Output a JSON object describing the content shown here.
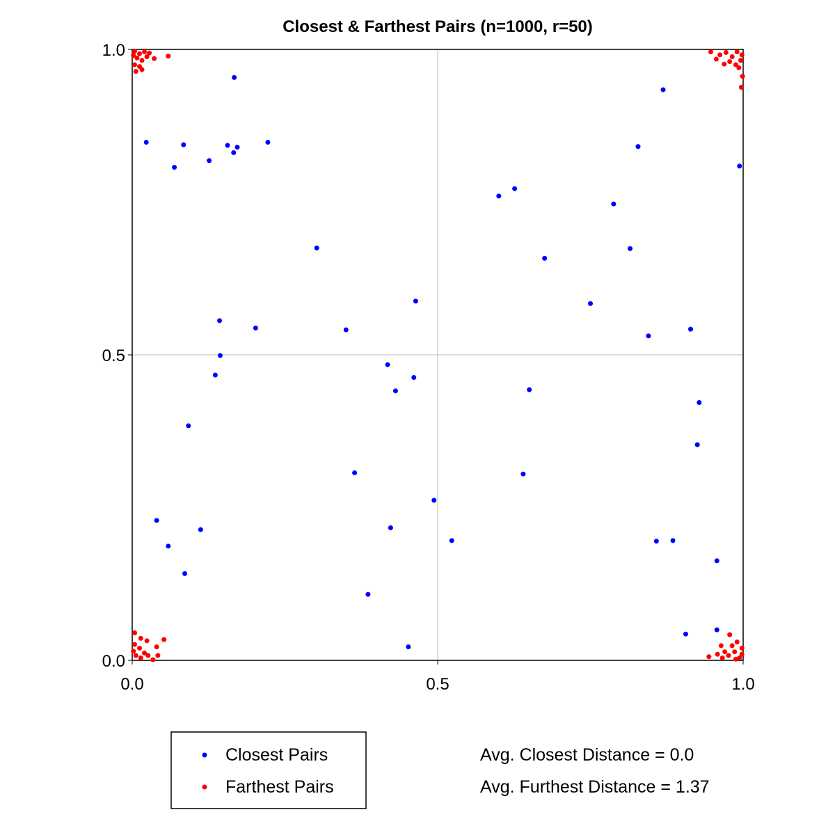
{
  "chart_data": {
    "type": "scatter",
    "title": "Closest & Farthest Pairs (n=1000, r=50)",
    "xlabel": "",
    "ylabel": "",
    "xlim": [
      0.0,
      1.0
    ],
    "ylim": [
      0.0,
      1.0
    ],
    "x_ticks": [
      "0.0",
      "0.5",
      "1.0"
    ],
    "y_ticks": [
      "0.0",
      "0.5",
      "1.0"
    ],
    "grid": true,
    "legend_position": "bottom-left",
    "series": [
      {
        "name": "Closest Pairs",
        "color": "#0000ff",
        "points": [
          [
            0.023,
            0.848
          ],
          [
            0.084,
            0.844
          ],
          [
            0.069,
            0.807
          ],
          [
            0.126,
            0.818
          ],
          [
            0.156,
            0.843
          ],
          [
            0.166,
            0.831
          ],
          [
            0.172,
            0.84
          ],
          [
            0.222,
            0.848
          ],
          [
            0.167,
            0.954
          ],
          [
            0.869,
            0.934
          ],
          [
            0.828,
            0.841
          ],
          [
            0.994,
            0.809
          ],
          [
            0.6,
            0.76
          ],
          [
            0.626,
            0.772
          ],
          [
            0.788,
            0.747
          ],
          [
            0.815,
            0.674
          ],
          [
            0.675,
            0.658
          ],
          [
            0.302,
            0.675
          ],
          [
            0.464,
            0.588
          ],
          [
            0.75,
            0.584
          ],
          [
            0.143,
            0.556
          ],
          [
            0.202,
            0.544
          ],
          [
            0.35,
            0.541
          ],
          [
            0.914,
            0.542
          ],
          [
            0.845,
            0.531
          ],
          [
            0.144,
            0.499
          ],
          [
            0.418,
            0.484
          ],
          [
            0.136,
            0.467
          ],
          [
            0.461,
            0.463
          ],
          [
            0.65,
            0.443
          ],
          [
            0.431,
            0.441
          ],
          [
            0.928,
            0.422
          ],
          [
            0.092,
            0.384
          ],
          [
            0.925,
            0.353
          ],
          [
            0.364,
            0.307
          ],
          [
            0.64,
            0.305
          ],
          [
            0.494,
            0.262
          ],
          [
            0.04,
            0.229
          ],
          [
            0.112,
            0.214
          ],
          [
            0.423,
            0.217
          ],
          [
            0.059,
            0.187
          ],
          [
            0.523,
            0.196
          ],
          [
            0.858,
            0.195
          ],
          [
            0.885,
            0.196
          ],
          [
            0.957,
            0.163
          ],
          [
            0.086,
            0.142
          ],
          [
            0.386,
            0.108
          ],
          [
            0.906,
            0.043
          ],
          [
            0.957,
            0.05
          ],
          [
            0.452,
            0.022
          ]
        ]
      },
      {
        "name": "Farthest Pairs",
        "color": "#ff0000",
        "points": [
          [
            0.004,
            0.997
          ],
          [
            0.012,
            0.993
          ],
          [
            0.02,
            0.996
          ],
          [
            0.028,
            0.994
          ],
          [
            0.008,
            0.986
          ],
          [
            0.016,
            0.982
          ],
          [
            0.024,
            0.988
          ],
          [
            0.004,
            0.975
          ],
          [
            0.012,
            0.972
          ],
          [
            0.006,
            0.964
          ],
          [
            0.016,
            0.967
          ],
          [
            0.036,
            0.985
          ],
          [
            0.059,
            0.989
          ],
          [
            0.002,
            0.99
          ],
          [
            0.947,
            0.996
          ],
          [
            0.962,
            0.991
          ],
          [
            0.972,
            0.995
          ],
          [
            0.982,
            0.988
          ],
          [
            0.99,
            0.996
          ],
          [
            0.998,
            0.991
          ],
          [
            0.978,
            0.98
          ],
          [
            0.988,
            0.975
          ],
          [
            0.996,
            0.982
          ],
          [
            0.969,
            0.976
          ],
          [
            0.999,
            0.956
          ],
          [
            0.997,
            0.938
          ],
          [
            0.956,
            0.984
          ],
          [
            0.993,
            0.97
          ],
          [
            0.004,
            0.045
          ],
          [
            0.014,
            0.036
          ],
          [
            0.004,
            0.026
          ],
          [
            0.012,
            0.02
          ],
          [
            0.02,
            0.012
          ],
          [
            0.006,
            0.008
          ],
          [
            0.014,
            0.004
          ],
          [
            0.026,
            0.008
          ],
          [
            0.042,
            0.008
          ],
          [
            0.04,
            0.022
          ],
          [
            0.052,
            0.034
          ],
          [
            0.024,
            0.032
          ],
          [
            0.002,
            0.015
          ],
          [
            0.034,
            0.001
          ],
          [
            0.944,
            0.006
          ],
          [
            0.958,
            0.01
          ],
          [
            0.966,
            0.004
          ],
          [
            0.976,
            0.008
          ],
          [
            0.986,
            0.014
          ],
          [
            0.994,
            0.004
          ],
          [
            0.998,
            0.02
          ],
          [
            0.99,
            0.03
          ],
          [
            0.978,
            0.042
          ],
          [
            0.964,
            0.024
          ],
          [
            0.982,
            0.024
          ],
          [
            0.998,
            0.01
          ],
          [
            0.97,
            0.014
          ],
          [
            0.988,
            0.002
          ]
        ]
      }
    ],
    "annotations": [
      "Avg. Closest Distance = 0.0",
      "Avg. Furthest Distance = 1.37"
    ]
  }
}
